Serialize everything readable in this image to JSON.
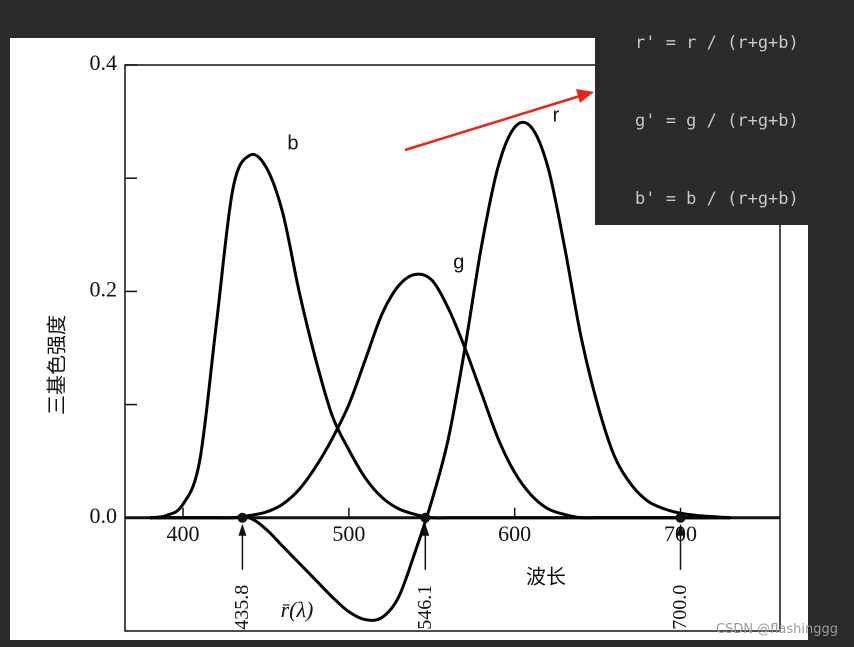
{
  "chart_data": {
    "type": "line",
    "ylabel": "三基色强度",
    "xlabel": "波长",
    "x": [
      380,
      390,
      400,
      410,
      420,
      430,
      440,
      450,
      460,
      470,
      480,
      490,
      500,
      510,
      520,
      530,
      540,
      550,
      560,
      570,
      580,
      590,
      600,
      610,
      620,
      630,
      640,
      650,
      660,
      670,
      680,
      690,
      700,
      710,
      720,
      730
    ],
    "series": [
      {
        "name": "b",
        "color": "#000000",
        "values": [
          0,
          0.002,
          0.012,
          0.05,
          0.17,
          0.29,
          0.32,
          0.31,
          0.27,
          0.2,
          0.14,
          0.09,
          0.06,
          0.035,
          0.018,
          0.008,
          0.003,
          0,
          0,
          0,
          0,
          0,
          0,
          0,
          0,
          0,
          0,
          0,
          0,
          0,
          0,
          0,
          0,
          0,
          0,
          0
        ]
      },
      {
        "name": "g",
        "color": "#000000",
        "values": [
          0,
          0,
          0,
          0,
          0,
          0,
          0.002,
          0.005,
          0.012,
          0.025,
          0.045,
          0.07,
          0.1,
          0.14,
          0.18,
          0.205,
          0.215,
          0.21,
          0.185,
          0.15,
          0.11,
          0.07,
          0.04,
          0.02,
          0.008,
          0.003,
          0,
          0,
          0,
          0,
          0,
          0,
          0,
          0,
          0,
          0
        ]
      },
      {
        "name": "r",
        "color": "#000000",
        "values": [
          0,
          0,
          0,
          0,
          0,
          0,
          0,
          -0.01,
          -0.025,
          -0.04,
          -0.055,
          -0.07,
          -0.083,
          -0.09,
          -0.088,
          -0.07,
          -0.03,
          0.015,
          0.07,
          0.15,
          0.24,
          0.31,
          0.345,
          0.345,
          0.31,
          0.24,
          0.16,
          0.1,
          0.055,
          0.03,
          0.015,
          0.008,
          0.004,
          0.002,
          0.001,
          0
        ]
      }
    ],
    "negative_label": "r̄(λ)",
    "primaries": [
      435.8,
      546.1,
      {
        "value": 700,
        "label": "700.0"
      }
    ],
    "xlim": [
      365,
      760
    ],
    "xticks": [
      400,
      500,
      600,
      700
    ],
    "ylim": [
      -0.1,
      0.4
    ],
    "yticks": [
      {
        "value": 0,
        "label": "0.0"
      },
      0.2,
      0.4
    ],
    "yminor": [
      0.1,
      0.3
    ]
  },
  "overlay": {
    "lines": [
      "r' = r / (r+g+b)",
      "g' = g / (r+g+b)",
      "b' = b / (r+g+b)"
    ]
  },
  "watermark": "CSDN @flashinggg"
}
